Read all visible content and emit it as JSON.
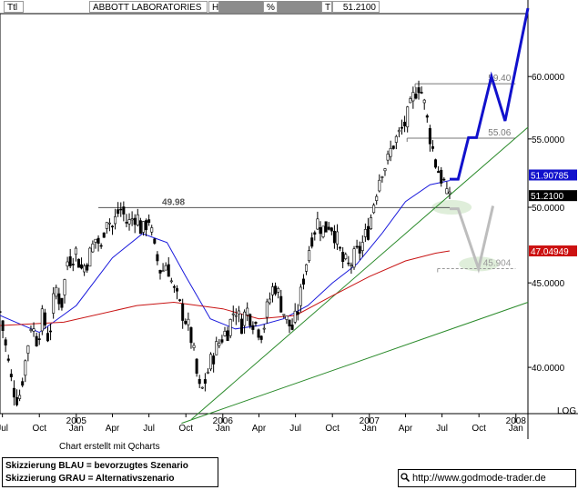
{
  "header": {
    "field1": "Ttl",
    "company": "ABBOTT LABORATORIES",
    "field_h": "H",
    "field_pct": "%",
    "field_t": "T",
    "last_price": "51.2100"
  },
  "footer": {
    "credit": "Chart erstellt mit Qcharts",
    "legend_blue": "Skizzierung BLAU = bevorzugtes Szenario",
    "legend_gray": "Skizzierung GRAU = Alternativszenario",
    "url": "http://www.godmode-trader.de",
    "scale_label": "LOG"
  },
  "chart_data": {
    "type": "candlestick",
    "title": "ABBOTT LABORATORIES",
    "y_scale": "log",
    "ylim": [
      37.5,
      65.5
    ],
    "y_ticks": [
      40,
      45,
      50,
      55,
      60
    ],
    "y_tick_labels": [
      "40.0000",
      "45.0000",
      "50.0000",
      "55.0000",
      "60.0000"
    ],
    "x_range": [
      "2004-06-25",
      "2008-01-31"
    ],
    "x_ticks": [
      {
        "date": "2004-07-01",
        "label": "Jul"
      },
      {
        "date": "2004-10-01",
        "label": "Oct"
      },
      {
        "date": "2005-01-01",
        "label": "Jan",
        "year": "2005"
      },
      {
        "date": "2005-04-01",
        "label": "Apr"
      },
      {
        "date": "2005-07-01",
        "label": "Jul"
      },
      {
        "date": "2005-10-01",
        "label": "Oct"
      },
      {
        "date": "2006-01-01",
        "label": "Jan",
        "year": "2006"
      },
      {
        "date": "2006-04-01",
        "label": "Apr"
      },
      {
        "date": "2006-07-01",
        "label": "Jul"
      },
      {
        "date": "2006-10-01",
        "label": "Oct"
      },
      {
        "date": "2007-01-01",
        "label": "Jan",
        "year": "2007"
      },
      {
        "date": "2007-04-01",
        "label": "Apr"
      },
      {
        "date": "2007-07-01",
        "label": "Jul"
      },
      {
        "date": "2007-10-01",
        "label": "Oct"
      },
      {
        "date": "2008-01-01",
        "label": "Jan",
        "year": "2008"
      }
    ],
    "price_path": [
      [
        "2004-06-25",
        43.2
      ],
      [
        "2004-07-10",
        41.0
      ],
      [
        "2004-07-25",
        39.0
      ],
      [
        "2004-08-10",
        38.2
      ],
      [
        "2004-08-25",
        40.0
      ],
      [
        "2004-09-10",
        42.5
      ],
      [
        "2004-09-25",
        41.6
      ],
      [
        "2004-10-10",
        43.0
      ],
      [
        "2004-10-25",
        41.5
      ],
      [
        "2004-11-10",
        44.8
      ],
      [
        "2004-11-25",
        43.6
      ],
      [
        "2004-12-10",
        46.4
      ],
      [
        "2004-12-31",
        47.0
      ],
      [
        "2005-01-15",
        45.8
      ],
      [
        "2005-02-01",
        46.6
      ],
      [
        "2005-02-20",
        48.0
      ],
      [
        "2005-03-05",
        47.0
      ],
      [
        "2005-03-15",
        49.6
      ],
      [
        "2005-04-01",
        48.6
      ],
      [
        "2005-04-20",
        50.0
      ],
      [
        "2005-05-10",
        48.8
      ],
      [
        "2005-05-30",
        49.6
      ],
      [
        "2005-06-15",
        48.2
      ],
      [
        "2005-06-30",
        49.4
      ],
      [
        "2005-07-15",
        47.0
      ],
      [
        "2005-08-01",
        45.6
      ],
      [
        "2005-08-15",
        46.4
      ],
      [
        "2005-08-30",
        44.6
      ],
      [
        "2005-09-15",
        43.6
      ],
      [
        "2005-09-30",
        42.8
      ],
      [
        "2005-10-15",
        41.6
      ],
      [
        "2005-10-28",
        39.6
      ],
      [
        "2005-11-05",
        38.6
      ],
      [
        "2005-11-12",
        38.8
      ],
      [
        "2005-11-25",
        39.8
      ],
      [
        "2005-12-10",
        40.8
      ],
      [
        "2005-12-31",
        41.8
      ],
      [
        "2006-01-15",
        42.2
      ],
      [
        "2006-02-01",
        43.6
      ],
      [
        "2006-02-15",
        42.4
      ],
      [
        "2006-03-01",
        43.4
      ],
      [
        "2006-03-15",
        42.8
      ],
      [
        "2006-04-01",
        42.2
      ],
      [
        "2006-04-10",
        42.0
      ],
      [
        "2006-04-25",
        43.8
      ],
      [
        "2006-05-10",
        45.0
      ],
      [
        "2006-05-25",
        43.8
      ],
      [
        "2006-06-10",
        42.6
      ],
      [
        "2006-06-25",
        42.2
      ],
      [
        "2006-07-10",
        43.6
      ],
      [
        "2006-07-25",
        46.0
      ],
      [
        "2006-08-10",
        48.0
      ],
      [
        "2006-08-25",
        49.0
      ],
      [
        "2006-09-10",
        48.4
      ],
      [
        "2006-09-25",
        49.0
      ],
      [
        "2006-10-10",
        48.0
      ],
      [
        "2006-10-25",
        46.4
      ],
      [
        "2006-11-10",
        46.0
      ],
      [
        "2006-11-25",
        46.6
      ],
      [
        "2006-12-10",
        47.2
      ],
      [
        "2006-12-31",
        48.6
      ],
      [
        "2007-01-15",
        50.8
      ],
      [
        "2007-01-31",
        52.8
      ],
      [
        "2007-02-15",
        53.2
      ],
      [
        "2007-02-28",
        54.6
      ],
      [
        "2007-03-10",
        55.0
      ],
      [
        "2007-03-25",
        55.8
      ],
      [
        "2007-04-10",
        57.0
      ],
      [
        "2007-04-25",
        58.8
      ],
      [
        "2007-05-05",
        59.4
      ],
      [
        "2007-05-15",
        58.2
      ],
      [
        "2007-05-25",
        56.4
      ],
      [
        "2007-06-05",
        54.6
      ],
      [
        "2007-06-15",
        53.2
      ],
      [
        "2007-06-25",
        52.4
      ],
      [
        "2007-07-01",
        52.0
      ],
      [
        "2007-07-08",
        51.6
      ],
      [
        "2007-07-15",
        50.2
      ],
      [
        "2007-07-20",
        51.21
      ]
    ],
    "series": [
      {
        "name": "",
        "role": "moving-average-blue",
        "color": "#1a1adc",
        "points": [
          [
            "2004-06-25",
            43.0
          ],
          [
            "2004-10-01",
            42.0
          ],
          [
            "2005-01-01",
            43.6
          ],
          [
            "2005-04-01",
            46.6
          ],
          [
            "2005-06-15",
            48.2
          ],
          [
            "2005-08-15",
            47.6
          ],
          [
            "2005-10-01",
            45.4
          ],
          [
            "2005-12-01",
            42.8
          ],
          [
            "2006-02-01",
            42.2
          ],
          [
            "2006-04-01",
            42.4
          ],
          [
            "2006-06-01",
            42.8
          ],
          [
            "2006-08-01",
            43.6
          ],
          [
            "2006-10-01",
            45.0
          ],
          [
            "2006-12-01",
            46.2
          ],
          [
            "2007-02-01",
            48.2
          ],
          [
            "2007-04-01",
            50.4
          ],
          [
            "2007-06-01",
            51.6
          ],
          [
            "2007-07-20",
            51.9
          ]
        ],
        "last_value": "51.90785"
      },
      {
        "name": "",
        "role": "moving-average-red",
        "color": "#c81414",
        "points": [
          [
            "2004-06-25",
            42.4
          ],
          [
            "2004-12-01",
            42.6
          ],
          [
            "2005-06-01",
            43.6
          ],
          [
            "2005-09-01",
            43.8
          ],
          [
            "2006-01-01",
            43.4
          ],
          [
            "2006-04-01",
            42.8
          ],
          [
            "2006-07-01",
            43.0
          ],
          [
            "2006-10-01",
            44.2
          ],
          [
            "2007-01-01",
            45.4
          ],
          [
            "2007-04-01",
            46.4
          ],
          [
            "2007-06-15",
            46.9
          ],
          [
            "2007-07-20",
            47.05
          ]
        ],
        "last_value": "47.04949"
      }
    ],
    "horizontal_levels": [
      {
        "value": 49.98,
        "label": "49.98",
        "from": "2005-02-25",
        "to": "2007-07-20",
        "color": "#555555"
      },
      {
        "value": 55.06,
        "label": "55.06",
        "from": "2007-04-05",
        "to": "2007-12-31",
        "color": "#777777"
      },
      {
        "value": 59.4,
        "label": "59.40",
        "from": "2007-04-25",
        "to": "2007-12-31",
        "color": "#777777"
      },
      {
        "value": 45.904,
        "label": "45.904",
        "from": "2007-06-20",
        "to": "2007-12-31",
        "color": "#999999",
        "dashed": true
      }
    ],
    "trendlines": [
      {
        "color": "#2a8a2a",
        "points": [
          [
            "2005-10-15",
            37.2
          ],
          [
            "2008-01-31",
            55.9
          ]
        ]
      },
      {
        "color": "#2a8a2a",
        "points": [
          [
            "2005-09-20",
            37.0
          ],
          [
            "2008-01-31",
            43.8
          ]
        ]
      }
    ],
    "scenario_blue": {
      "label": "bevorzugtes Szenario",
      "color": "#1111cc",
      "points": [
        [
          "2007-07-20",
          52.0
        ],
        [
          "2007-08-10",
          52.0
        ],
        [
          "2007-09-05",
          55.1
        ],
        [
          "2007-09-25",
          55.1
        ],
        [
          "2007-11-01",
          60.0
        ],
        [
          "2007-12-05",
          56.4
        ],
        [
          "2008-01-31",
          66.0
        ]
      ]
    },
    "scenario_gray": {
      "label": "Alternativszenario",
      "color": "#bdbdbd",
      "points": [
        [
          "2007-07-20",
          49.9
        ],
        [
          "2007-08-10",
          49.9
        ],
        [
          "2007-09-30",
          45.9
        ],
        [
          "2007-11-05",
          50.1
        ]
      ]
    },
    "support_zones": [
      {
        "date": "2007-07-25",
        "value": 50.0,
        "color": "#dcecd6"
      },
      {
        "date": "2007-10-01",
        "value": 46.2,
        "color": "#dcecd6"
      }
    ],
    "price_labels": [
      {
        "value": 51.90785,
        "text": "51.90785",
        "bg": "#1111cc",
        "fg": "#ffffff"
      },
      {
        "value": 51.21,
        "text": "51.2100",
        "bg": "#000000",
        "fg": "#ffffff"
      },
      {
        "value": 47.04949,
        "text": "47.04949",
        "bg": "#cc1111",
        "fg": "#ffffff"
      }
    ]
  }
}
